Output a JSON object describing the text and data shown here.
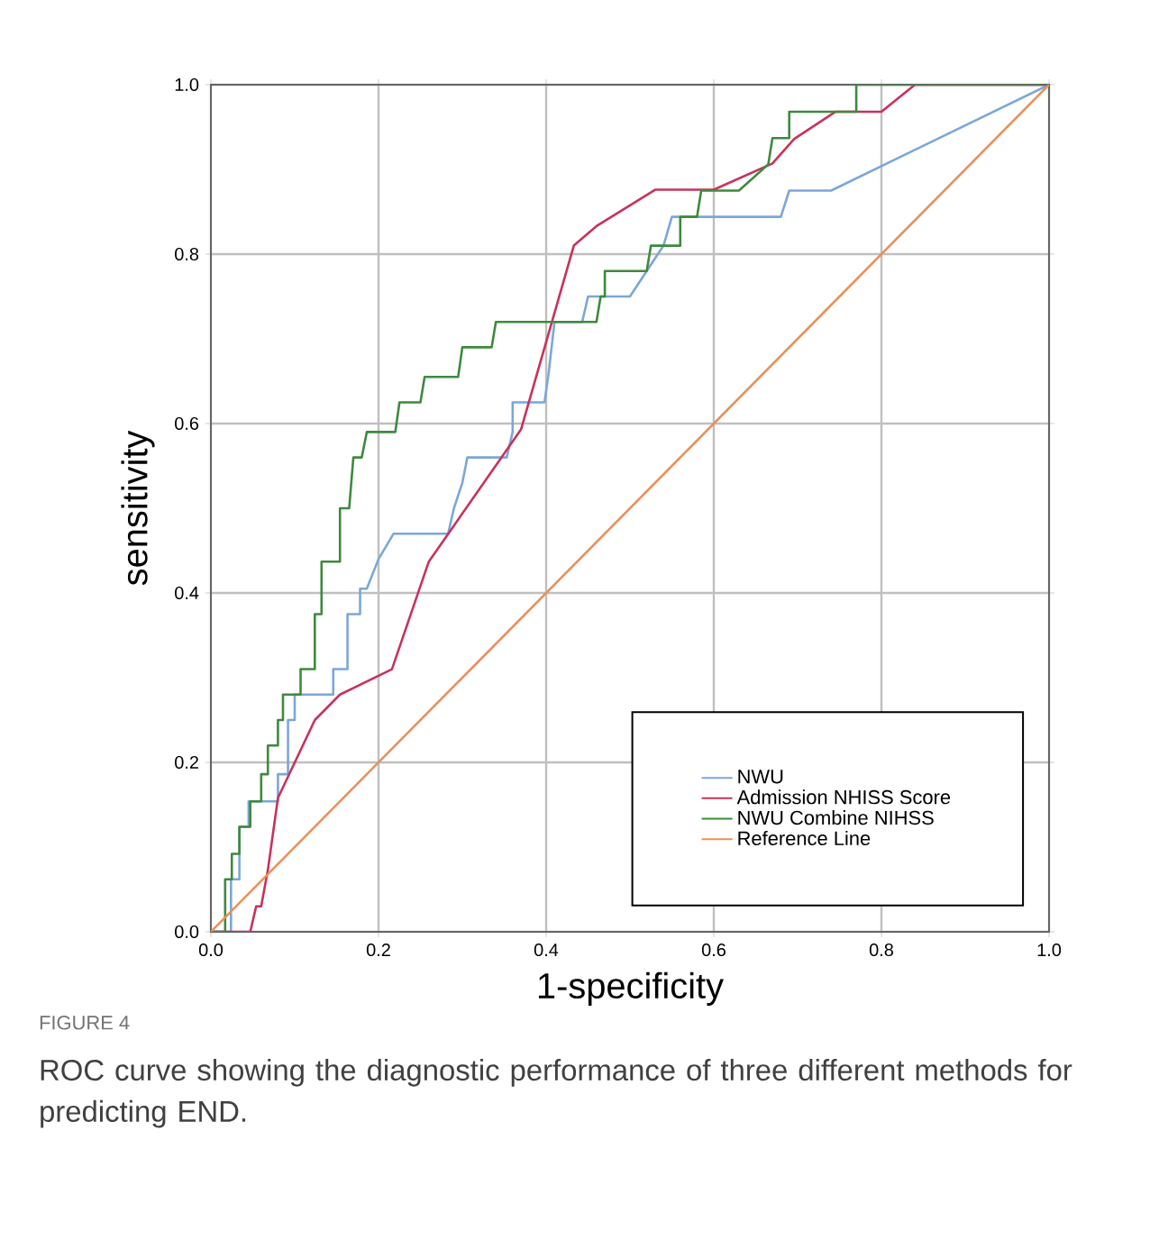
{
  "chart_data": {
    "type": "line",
    "xlabel": "1-specificity",
    "ylabel": "sensitivity",
    "xlim": [
      0,
      1
    ],
    "ylim": [
      0,
      1
    ],
    "xticks": [
      {
        "value": 0,
        "label": "0.0"
      },
      {
        "value": 0.2,
        "label": "0.2"
      },
      {
        "value": 0.4,
        "label": "0.4"
      },
      {
        "value": 0.6,
        "label": "0.6"
      },
      {
        "value": 0.8,
        "label": "0.8"
      },
      {
        "value": 1,
        "label": "1.0"
      }
    ],
    "yticks": [
      {
        "value": 0,
        "label": "0.0"
      },
      {
        "value": 0.2,
        "label": "0.2"
      },
      {
        "value": 0.4,
        "label": "0.4"
      },
      {
        "value": 0.6,
        "label": "0.6"
      },
      {
        "value": 0.8,
        "label": "0.8"
      },
      {
        "value": 1,
        "label": "1.0"
      }
    ],
    "grid": true,
    "legend": "bottom right",
    "marker": "none",
    "line_style": "solid",
    "series": [
      {
        "name": "NWU",
        "color": "#7ba7d8",
        "x": [
          0,
          0.024,
          0.024,
          0.034,
          0.034,
          0.045,
          0.045,
          0.08,
          0.08,
          0.092,
          0.092,
          0.1,
          0.1,
          0.146,
          0.146,
          0.163,
          0.163,
          0.178,
          0.178,
          0.186,
          0.2,
          0.218,
          0.283,
          0.29,
          0.3,
          0.306,
          0.353,
          0.36,
          0.36,
          0.398,
          0.403,
          0.41,
          0.443,
          0.45,
          0.5,
          0.52,
          0.54,
          0.55,
          0.68,
          0.69,
          0.74,
          1
        ],
        "values": [
          0,
          0,
          0.062,
          0.062,
          0.124,
          0.124,
          0.154,
          0.154,
          0.186,
          0.186,
          0.25,
          0.25,
          0.28,
          0.28,
          0.31,
          0.31,
          0.375,
          0.375,
          0.405,
          0.405,
          0.44,
          0.47,
          0.47,
          0.5,
          0.53,
          0.56,
          0.56,
          0.59,
          0.625,
          0.625,
          0.66,
          0.72,
          0.72,
          0.75,
          0.75,
          0.78,
          0.81,
          0.844,
          0.844,
          0.875,
          0.875,
          1
        ]
      },
      {
        "name": "Admission NHISS Score",
        "color": "#c8325a",
        "x": [
          0,
          0.047,
          0.054,
          0.06,
          0.068,
          0.08,
          0.124,
          0.154,
          0.216,
          0.26,
          0.37,
          0.433,
          0.46,
          0.53,
          0.6,
          0.67,
          0.696,
          0.745,
          0.8,
          0.84,
          1
        ],
        "values": [
          0,
          0,
          0.03,
          0.03,
          0.073,
          0.158,
          0.25,
          0.28,
          0.31,
          0.437,
          0.593,
          0.81,
          0.833,
          0.876,
          0.876,
          0.907,
          0.936,
          0.968,
          0.968,
          1,
          1
        ]
      },
      {
        "name": "NWU Combine NIHSS",
        "color": "#3d8a3d",
        "x": [
          0,
          0.017,
          0.017,
          0.025,
          0.025,
          0.034,
          0.034,
          0.047,
          0.047,
          0.06,
          0.06,
          0.068,
          0.068,
          0.08,
          0.08,
          0.086,
          0.086,
          0.107,
          0.107,
          0.124,
          0.124,
          0.132,
          0.132,
          0.154,
          0.154,
          0.165,
          0.17,
          0.18,
          0.186,
          0.22,
          0.225,
          0.25,
          0.255,
          0.295,
          0.3,
          0.335,
          0.34,
          0.46,
          0.465,
          0.47,
          0.47,
          0.52,
          0.525,
          0.56,
          0.56,
          0.58,
          0.585,
          0.63,
          0.665,
          0.67,
          0.69,
          0.69,
          0.77,
          0.77,
          1
        ],
        "values": [
          0,
          0,
          0.062,
          0.062,
          0.092,
          0.092,
          0.124,
          0.124,
          0.154,
          0.154,
          0.186,
          0.186,
          0.22,
          0.22,
          0.25,
          0.25,
          0.28,
          0.28,
          0.31,
          0.31,
          0.375,
          0.375,
          0.437,
          0.437,
          0.5,
          0.5,
          0.56,
          0.56,
          0.59,
          0.59,
          0.625,
          0.625,
          0.655,
          0.655,
          0.69,
          0.69,
          0.72,
          0.72,
          0.75,
          0.75,
          0.78,
          0.78,
          0.81,
          0.81,
          0.844,
          0.844,
          0.875,
          0.875,
          0.906,
          0.937,
          0.937,
          0.968,
          0.968,
          1,
          1
        ]
      },
      {
        "name": "Reference Line",
        "color": "#e8905a",
        "x": [
          0,
          1
        ],
        "values": [
          0,
          1
        ]
      }
    ],
    "annotations": [
      "FIGURE 4",
      "ROC curve showing the diagnostic performance of three different methods for predicting END."
    ]
  }
}
